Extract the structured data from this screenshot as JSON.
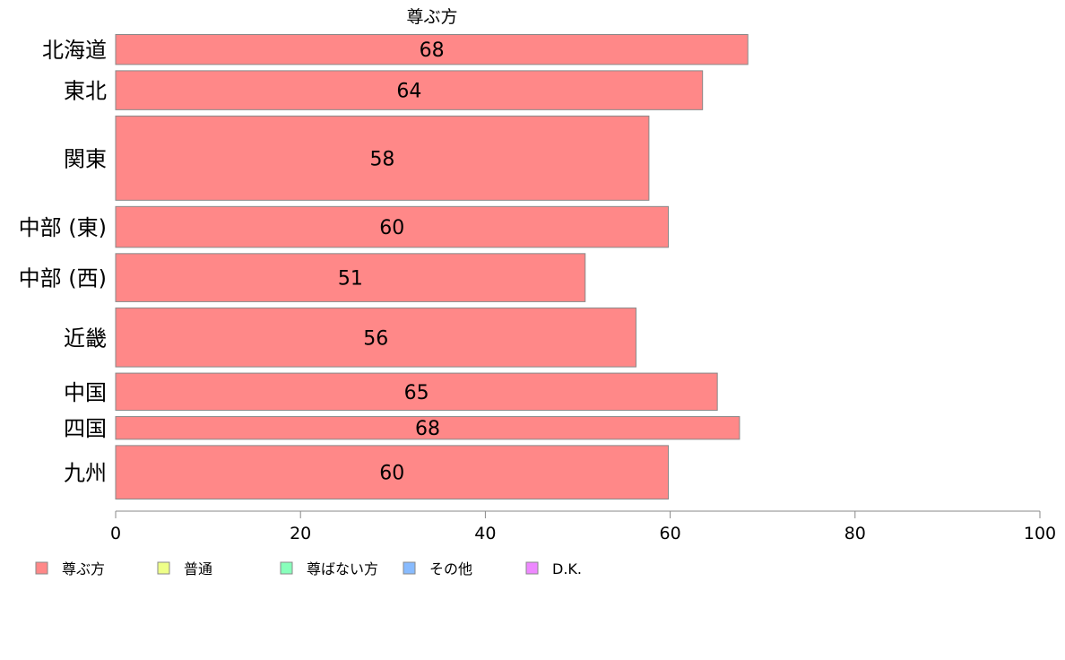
{
  "chart_data": {
    "type": "bar",
    "orientation": "horizontal",
    "title": "尊ぶ方",
    "categories": [
      "北海道",
      "東北",
      "関東",
      "中部 (東)",
      "中部 (西)",
      "近畿",
      "中国",
      "四国",
      "九州"
    ],
    "series": [
      {
        "name": "尊ぶ方",
        "color": "#ff8888",
        "values": [
          68.4,
          63.5,
          57.7,
          59.8,
          50.8,
          56.3,
          65.1,
          67.5,
          59.8
        ],
        "labels": [
          "68",
          "64",
          "58",
          "60",
          "51",
          "56",
          "65",
          "68",
          "60"
        ]
      }
    ],
    "category_weights": [
      2,
      2.5,
      5,
      2.6,
      3,
      3.6,
      2.4,
      1.6,
      3.3
    ],
    "xlim": [
      0,
      100
    ],
    "xticks": [
      0,
      20,
      40,
      60,
      80,
      100
    ],
    "xtick_labels": [
      "0",
      "20",
      "40",
      "60",
      "80",
      "100"
    ],
    "legend": {
      "position": "bottom-left",
      "items": [
        {
          "label": "尊ぶ方",
          "color": "#ff8888"
        },
        {
          "label": "普通",
          "color": "#eeff88"
        },
        {
          "label": "尊ばない方",
          "color": "#88ffbb"
        },
        {
          "label": "その他",
          "color": "#88bbff"
        },
        {
          "label": "D.K.",
          "color": "#ee88ff"
        }
      ]
    }
  }
}
